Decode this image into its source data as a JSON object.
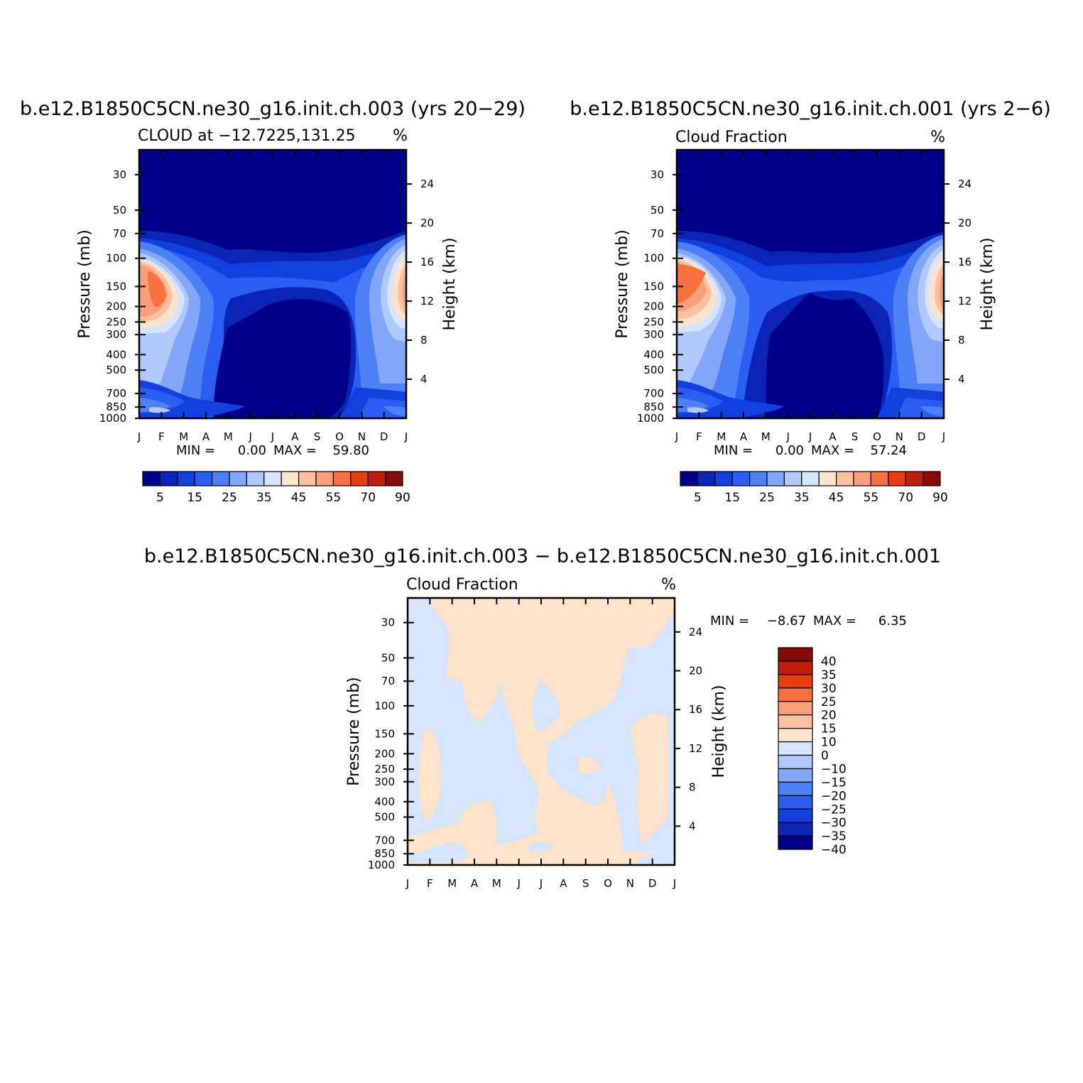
{
  "charts": [
    {
      "title": "b.e12.B1850C5CN.ne30_g16.init.ch.003 (yrs 20−29)",
      "left_label": "CLOUD at −12.7225,131.25",
      "right_label": "%",
      "ylabel": "Pressure (mb)",
      "y2label": "Height (km)",
      "stats": {
        "min_label": "MIN =",
        "min_value": "0.00",
        "max_label": "MAX =",
        "max_value": "59.80"
      },
      "colorbar_labels": [
        "5",
        "15",
        "25",
        "35",
        "45",
        "55",
        "70",
        "90"
      ]
    },
    {
      "title": "b.e12.B1850C5CN.ne30_g16.init.ch.001 (yrs 2−6)",
      "left_label": "Cloud Fraction",
      "right_label": "%",
      "ylabel": "Pressure (mb)",
      "y2label": "Height (km)",
      "stats": {
        "min_label": "MIN =",
        "min_value": "0.00",
        "max_label": "MAX =",
        "max_value": "57.24"
      },
      "colorbar_labels": [
        "5",
        "15",
        "25",
        "35",
        "45",
        "55",
        "70",
        "90"
      ]
    },
    {
      "title": "b.e12.B1850C5CN.ne30_g16.init.ch.003 − b.e12.B1850C5CN.ne30_g16.init.ch.001",
      "left_label": "Cloud Fraction",
      "right_label": "%",
      "ylabel": "Pressure (mb)",
      "y2label": "Height (km)",
      "stats": {
        "min_label": "MIN =",
        "min_value": "−8.67",
        "max_label": "MAX =",
        "max_value": "6.35"
      },
      "colorbar_labels": [
        "40",
        "35",
        "30",
        "25",
        "20",
        "15",
        "10",
        "0",
        "−10",
        "−15",
        "−20",
        "−25",
        "−30",
        "−35",
        "−40"
      ]
    }
  ],
  "chart_data": [
    {
      "type": "heatmap",
      "x_ticks": [
        "J",
        "F",
        "M",
        "A",
        "M",
        "J",
        "J",
        "A",
        "S",
        "O",
        "N",
        "D",
        "J"
      ],
      "y_ticks_pressure_mb": [
        30,
        50,
        70,
        100,
        150,
        200,
        250,
        300,
        400,
        500,
        700,
        850,
        1000
      ],
      "y2_ticks_height_km": [
        24,
        20,
        16,
        12,
        8,
        4
      ],
      "ylim_mb": [
        1000,
        21
      ],
      "levels": [
        5,
        10,
        15,
        20,
        25,
        30,
        35,
        40,
        45,
        50,
        55,
        60,
        70,
        80,
        90
      ],
      "colors": [
        "#00008a",
        "#0a25b5",
        "#1240df",
        "#2a5ef2",
        "#4d7ff5",
        "#82a7f8",
        "#b0c8fb",
        "#d5e5fd",
        "#fee3cc",
        "#fcbf9f",
        "#fa9f7b",
        "#f8703f",
        "#e83d12",
        "#be1e0d",
        "#870a09"
      ],
      "min": 0.0,
      "max": 59.8
    },
    {
      "type": "heatmap",
      "x_ticks": [
        "J",
        "F",
        "M",
        "A",
        "M",
        "J",
        "J",
        "A",
        "S",
        "O",
        "N",
        "D",
        "J"
      ],
      "y_ticks_pressure_mb": [
        30,
        50,
        70,
        100,
        150,
        200,
        250,
        300,
        400,
        500,
        700,
        850,
        1000
      ],
      "y2_ticks_height_km": [
        24,
        20,
        16,
        12,
        8,
        4
      ],
      "ylim_mb": [
        1000,
        21
      ],
      "levels": [
        5,
        10,
        15,
        20,
        25,
        30,
        35,
        40,
        45,
        50,
        55,
        60,
        70,
        80,
        90
      ],
      "colors": [
        "#00008a",
        "#0a25b5",
        "#1240df",
        "#2a5ef2",
        "#4d7ff5",
        "#82a7f8",
        "#b0c8fb",
        "#d5e5fd",
        "#fee3cc",
        "#fcbf9f",
        "#fa9f7b",
        "#f8703f",
        "#e83d12",
        "#be1e0d",
        "#870a09"
      ],
      "min": 0.0,
      "max": 57.24
    },
    {
      "type": "heatmap",
      "x_ticks": [
        "J",
        "F",
        "M",
        "A",
        "M",
        "J",
        "J",
        "A",
        "S",
        "O",
        "N",
        "D",
        "J"
      ],
      "y_ticks_pressure_mb": [
        30,
        50,
        70,
        100,
        150,
        200,
        250,
        300,
        400,
        500,
        700,
        850,
        1000
      ],
      "y2_ticks_height_km": [
        24,
        20,
        16,
        12,
        8,
        4
      ],
      "ylim_mb": [
        1000,
        21
      ],
      "levels": [
        -40,
        -35,
        -30,
        -25,
        -20,
        -15,
        -10,
        0,
        10,
        15,
        20,
        25,
        30,
        35,
        40
      ],
      "colors": [
        "#00008a",
        "#0a25b5",
        "#1240df",
        "#2a5ef2",
        "#4d7ff5",
        "#82a7f8",
        "#b0c8fb",
        "#d5e5fd",
        "#fee3cc",
        "#fcbf9f",
        "#fa9f7b",
        "#f8703f",
        "#e83d12",
        "#be1e0d",
        "#870a09"
      ],
      "min": -8.67,
      "max": 6.35
    }
  ]
}
